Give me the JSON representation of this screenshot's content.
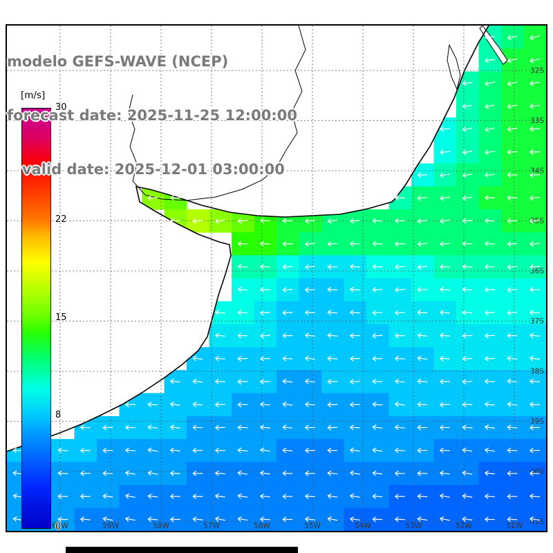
{
  "header": {
    "line1": "modelo GEFS-WAVE (NCEP)",
    "line2": "forecast date: 2025-11-25 12:00:00",
    "line3": "   valid date: 2025-12-01 03:00:00"
  },
  "colorbar": {
    "unit": "[m/s]",
    "min": 0,
    "max": 30,
    "stops": [
      {
        "v": 0,
        "c": "#0000c8"
      },
      {
        "v": 3,
        "c": "#0028ff"
      },
      {
        "v": 5,
        "c": "#0064ff"
      },
      {
        "v": 7,
        "c": "#00a0ff"
      },
      {
        "v": 8,
        "c": "#00c8ff"
      },
      {
        "v": 10,
        "c": "#00ffe6"
      },
      {
        "v": 12,
        "c": "#00ff78"
      },
      {
        "v": 14,
        "c": "#28ff00"
      },
      {
        "v": 15,
        "c": "#64ff00"
      },
      {
        "v": 17,
        "c": "#b4ff00"
      },
      {
        "v": 19,
        "c": "#ffff00"
      },
      {
        "v": 21,
        "c": "#ffb400"
      },
      {
        "v": 22,
        "c": "#ff7800"
      },
      {
        "v": 24,
        "c": "#ff3c00"
      },
      {
        "v": 26,
        "c": "#ff0000"
      },
      {
        "v": 28,
        "c": "#dc0064"
      },
      {
        "v": 30,
        "c": "#c80096"
      }
    ]
  },
  "map": {
    "lat_labels": [
      "32S",
      "33S",
      "34S",
      "35S",
      "36S",
      "37S",
      "38S",
      "39S",
      "40S",
      "41S"
    ],
    "lon_labels": [
      "60W",
      "59W",
      "58W",
      "57W",
      "56W",
      "55W",
      "54W",
      "53W",
      "52W",
      "51W"
    ]
  },
  "chart_data": {
    "type": "heatmap",
    "quantity": "wind speed with direction arrows",
    "units": "m/s",
    "colorbar_ticks": [
      30,
      22,
      15,
      8,
      0
    ],
    "value_range": [
      0,
      30
    ],
    "arrow_color": "#ffffff",
    "grid_cols": 24,
    "grid_rows": 22,
    "speeds": [
      [
        null,
        null,
        null,
        null,
        null,
        null,
        null,
        null,
        null,
        null,
        null,
        null,
        null,
        null,
        null,
        null,
        null,
        null,
        null,
        null,
        null,
        11,
        12,
        13
      ],
      [
        null,
        null,
        null,
        null,
        null,
        null,
        null,
        null,
        null,
        null,
        null,
        null,
        null,
        null,
        null,
        null,
        null,
        null,
        null,
        null,
        null,
        11,
        13,
        13
      ],
      [
        null,
        null,
        null,
        null,
        null,
        null,
        null,
        null,
        null,
        null,
        null,
        null,
        null,
        null,
        null,
        null,
        null,
        null,
        null,
        null,
        11,
        12,
        13,
        13
      ],
      [
        null,
        null,
        null,
        null,
        null,
        null,
        null,
        null,
        null,
        null,
        null,
        null,
        null,
        null,
        null,
        null,
        null,
        null,
        null,
        null,
        11,
        12,
        13,
        13
      ],
      [
        null,
        null,
        null,
        null,
        null,
        null,
        null,
        null,
        null,
        null,
        null,
        null,
        null,
        null,
        null,
        null,
        null,
        null,
        null,
        10,
        11,
        12,
        13,
        13
      ],
      [
        null,
        null,
        null,
        null,
        null,
        null,
        null,
        null,
        null,
        null,
        null,
        null,
        null,
        null,
        null,
        null,
        null,
        null,
        null,
        10,
        11,
        12,
        13,
        13
      ],
      [
        null,
        null,
        null,
        null,
        null,
        null,
        null,
        null,
        null,
        null,
        null,
        null,
        null,
        null,
        null,
        null,
        null,
        null,
        10,
        11,
        12,
        12,
        13,
        13
      ],
      [
        null,
        null,
        null,
        null,
        null,
        null,
        16,
        15,
        null,
        null,
        null,
        null,
        null,
        null,
        null,
        null,
        null,
        11,
        12,
        12,
        12,
        13,
        13,
        13
      ],
      [
        null,
        null,
        null,
        null,
        null,
        null,
        null,
        16,
        17,
        16,
        15,
        14,
        13,
        13,
        12,
        12,
        12,
        12,
        12,
        12,
        12,
        12,
        13,
        13
      ],
      [
        null,
        null,
        null,
        null,
        null,
        null,
        null,
        null,
        null,
        null,
        14,
        14,
        13,
        12,
        12,
        12,
        12,
        12,
        12,
        12,
        12,
        12,
        12,
        12
      ],
      [
        null,
        null,
        null,
        null,
        null,
        null,
        null,
        null,
        null,
        null,
        11,
        11,
        10,
        9,
        9,
        9,
        10,
        10,
        10,
        11,
        11,
        11,
        11,
        11
      ],
      [
        null,
        null,
        null,
        null,
        null,
        null,
        null,
        null,
        null,
        null,
        10,
        10,
        9,
        8,
        8,
        9,
        9,
        9,
        10,
        10,
        10,
        10,
        10,
        10
      ],
      [
        null,
        null,
        null,
        null,
        null,
        null,
        null,
        null,
        null,
        10,
        10,
        9,
        8,
        8,
        8,
        8,
        9,
        9,
        9,
        9,
        10,
        10,
        10,
        10
      ],
      [
        null,
        null,
        null,
        null,
        null,
        null,
        null,
        null,
        null,
        9,
        9,
        9,
        8,
        8,
        8,
        8,
        8,
        9,
        9,
        9,
        9,
        9,
        9,
        9
      ],
      [
        null,
        null,
        null,
        null,
        null,
        null,
        null,
        null,
        8,
        8,
        8,
        8,
        8,
        8,
        8,
        8,
        8,
        8,
        8,
        9,
        9,
        9,
        9,
        9
      ],
      [
        null,
        null,
        null,
        null,
        null,
        null,
        null,
        8,
        8,
        8,
        8,
        8,
        7,
        7,
        8,
        8,
        8,
        8,
        8,
        8,
        8,
        8,
        8,
        8
      ],
      [
        null,
        null,
        null,
        null,
        null,
        8,
        8,
        8,
        8,
        8,
        7,
        7,
        7,
        7,
        7,
        7,
        7,
        8,
        8,
        8,
        8,
        8,
        8,
        8
      ],
      [
        null,
        null,
        null,
        8,
        8,
        8,
        8,
        8,
        7,
        7,
        7,
        7,
        7,
        7,
        7,
        7,
        7,
        7,
        7,
        7,
        7,
        7,
        7,
        7
      ],
      [
        8,
        8,
        8,
        8,
        7,
        7,
        7,
        7,
        7,
        7,
        7,
        7,
        6,
        6,
        6,
        7,
        7,
        7,
        7,
        6,
        6,
        6,
        6,
        6
      ],
      [
        7,
        7,
        7,
        7,
        7,
        7,
        7,
        7,
        6,
        6,
        6,
        6,
        6,
        6,
        6,
        6,
        6,
        6,
        6,
        6,
        6,
        5,
        5,
        5
      ],
      [
        7,
        7,
        7,
        7,
        7,
        6,
        6,
        6,
        6,
        6,
        6,
        6,
        6,
        6,
        6,
        6,
        6,
        5,
        5,
        5,
        5,
        5,
        5,
        5
      ],
      [
        7,
        7,
        7,
        6,
        6,
        6,
        6,
        6,
        6,
        6,
        6,
        6,
        6,
        6,
        6,
        5,
        5,
        5,
        5,
        5,
        5,
        5,
        5,
        5
      ]
    ],
    "arrow_rotation_deg_by_row": [
      170,
      170,
      171,
      172,
      173,
      174,
      175,
      176,
      177,
      179,
      180,
      180,
      181,
      181,
      182,
      182,
      183,
      183,
      184,
      185,
      185,
      186
    ]
  }
}
